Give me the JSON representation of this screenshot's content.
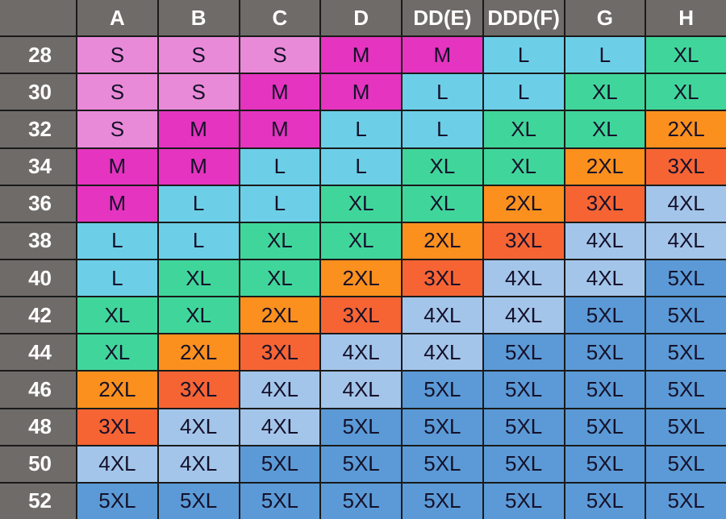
{
  "colors": {
    "header": "#6f6b69",
    "S": "#e98ad8",
    "M": "#e534bf",
    "L": "#6ccfe7",
    "XL": "#40d69b",
    "2XL": "#fb901e",
    "3XL": "#f66434",
    "4XL": "#a3c5ea",
    "5XL": "#5b9ad6"
  },
  "columns": [
    "A",
    "B",
    "C",
    "D",
    "DD(E)",
    "DDD(F)",
    "G",
    "H"
  ],
  "rows": [
    {
      "band": "28",
      "sizes": [
        "S",
        "S",
        "S",
        "M",
        "M",
        "L",
        "L",
        "XL"
      ]
    },
    {
      "band": "30",
      "sizes": [
        "S",
        "S",
        "M",
        "M",
        "L",
        "L",
        "XL",
        "XL"
      ]
    },
    {
      "band": "32",
      "sizes": [
        "S",
        "M",
        "M",
        "L",
        "L",
        "XL",
        "XL",
        "2XL"
      ]
    },
    {
      "band": "34",
      "sizes": [
        "M",
        "M",
        "L",
        "L",
        "XL",
        "XL",
        "2XL",
        "3XL"
      ]
    },
    {
      "band": "36",
      "sizes": [
        "M",
        "L",
        "L",
        "XL",
        "XL",
        "2XL",
        "3XL",
        "4XL"
      ]
    },
    {
      "band": "38",
      "sizes": [
        "L",
        "L",
        "XL",
        "XL",
        "2XL",
        "3XL",
        "4XL",
        "4XL"
      ]
    },
    {
      "band": "40",
      "sizes": [
        "L",
        "XL",
        "XL",
        "2XL",
        "3XL",
        "4XL",
        "4XL",
        "5XL"
      ]
    },
    {
      "band": "42",
      "sizes": [
        "XL",
        "XL",
        "2XL",
        "3XL",
        "4XL",
        "4XL",
        "5XL",
        "5XL"
      ]
    },
    {
      "band": "44",
      "sizes": [
        "XL",
        "2XL",
        "3XL",
        "4XL",
        "4XL",
        "5XL",
        "5XL",
        "5XL"
      ]
    },
    {
      "band": "46",
      "sizes": [
        "2XL",
        "3XL",
        "4XL",
        "4XL",
        "5XL",
        "5XL",
        "5XL",
        "5XL"
      ]
    },
    {
      "band": "48",
      "sizes": [
        "3XL",
        "4XL",
        "4XL",
        "5XL",
        "5XL",
        "5XL",
        "5XL",
        "5XL"
      ]
    },
    {
      "band": "50",
      "sizes": [
        "4XL",
        "4XL",
        "5XL",
        "5XL",
        "5XL",
        "5XL",
        "5XL",
        "5XL"
      ]
    },
    {
      "band": "52",
      "sizes": [
        "5XL",
        "5XL",
        "5XL",
        "5XL",
        "5XL",
        "5XL",
        "5XL",
        "5XL"
      ]
    }
  ]
}
